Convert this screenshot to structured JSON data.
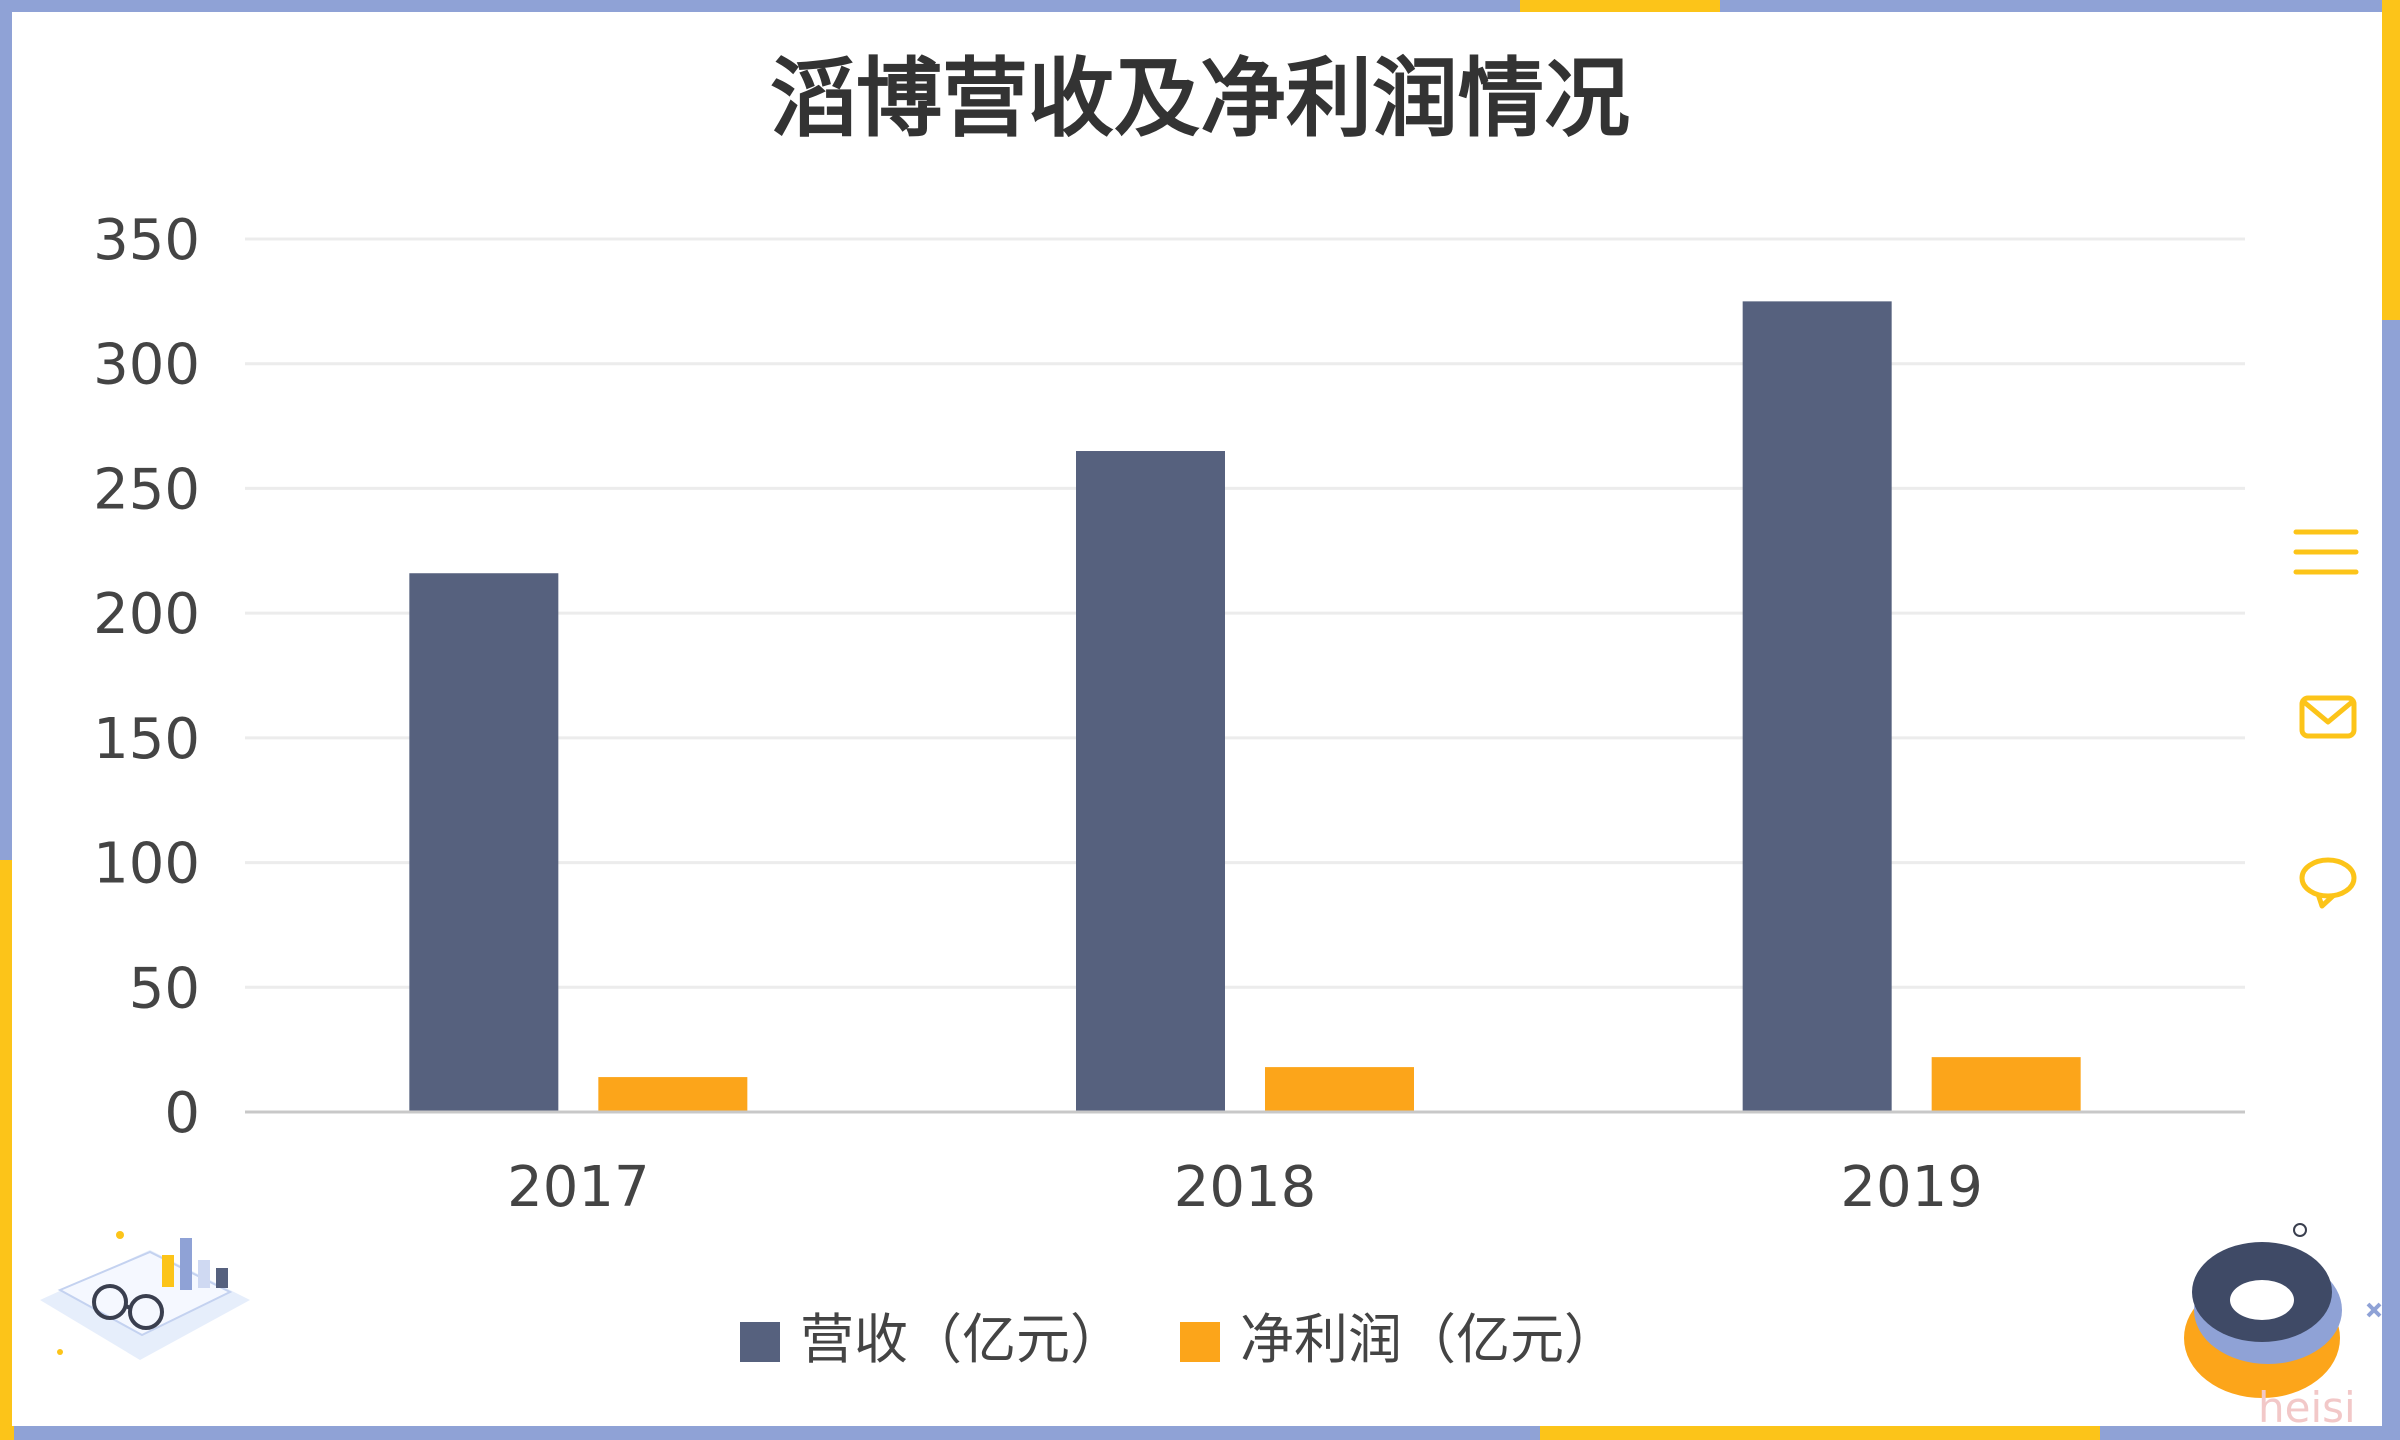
{
  "chart_data": {
    "type": "bar",
    "title": "滔博营收及净利润情况",
    "categories": [
      "2017",
      "2018",
      "2019"
    ],
    "series": [
      {
        "name": "营收（亿元）",
        "values": [
          216,
          265,
          325
        ]
      },
      {
        "name": "净利润（亿元）",
        "values": [
          14,
          18,
          22
        ]
      }
    ],
    "y_ticks": [
      "0",
      "50",
      "100",
      "150",
      "200",
      "250",
      "300",
      "350"
    ],
    "ylim": [
      0,
      350
    ],
    "grid": true,
    "legend_position": "bottom-center"
  },
  "colors": {
    "revenue": "#56617e",
    "profit": "#fca51a",
    "accent": "#fcc419",
    "frame_blue": "#8fa2d6",
    "gridline": "#ececec",
    "axis": "#c8c8c8",
    "text": "#444444"
  },
  "side_icons": [
    "menu-icon",
    "mail-icon",
    "comment-icon"
  ],
  "watermark": "heisi"
}
